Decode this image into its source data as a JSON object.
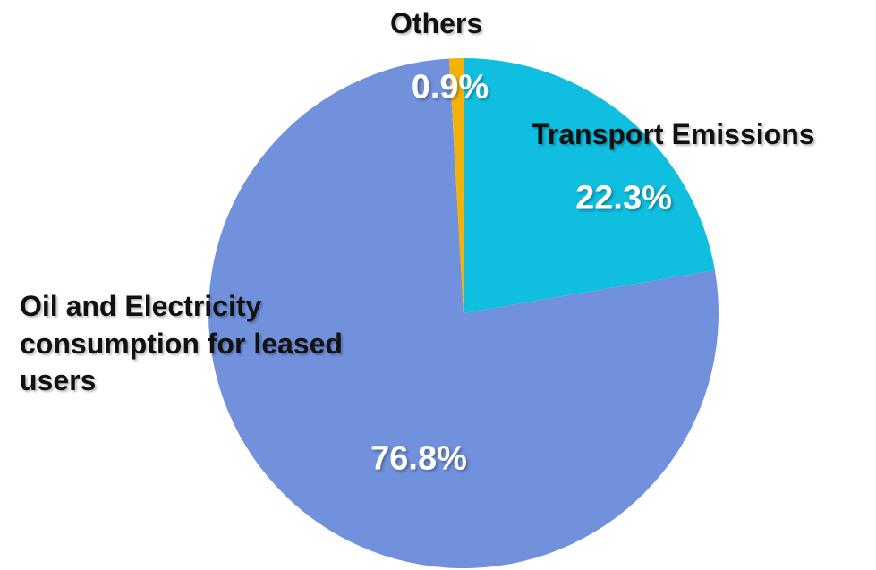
{
  "chart_data": {
    "type": "pie",
    "categories": [
      "Transport Emissions",
      "Oil and Electricity consumption for leased users",
      "Others"
    ],
    "values": [
      22.3,
      76.8,
      0.9
    ],
    "value_labels": [
      "22.3%",
      "76.8%",
      "0.9%"
    ],
    "colors": [
      "#10bfe0",
      "#7191dc",
      "#f2b20a"
    ]
  }
}
